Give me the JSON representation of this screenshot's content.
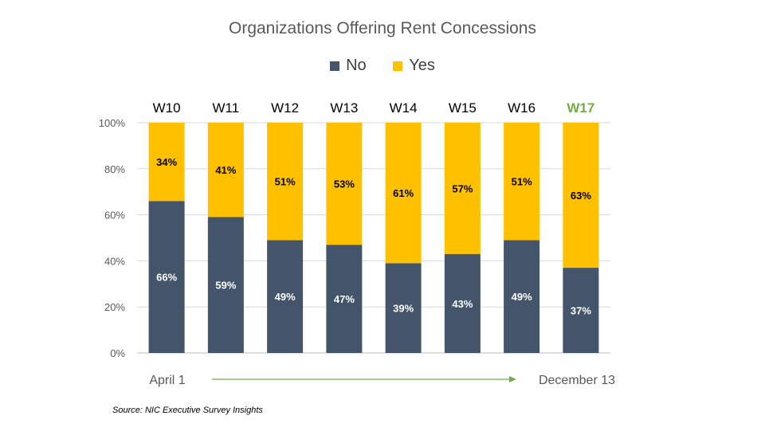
{
  "chart_data": {
    "type": "bar",
    "stacked": true,
    "title": "Organizations Offering Rent Concessions",
    "categories": [
      "W10",
      "W11",
      "W12",
      "W13",
      "W14",
      "W15",
      "W16",
      "W17"
    ],
    "highlight_category": "W17",
    "series": [
      {
        "name": "No",
        "values": [
          66,
          59,
          49,
          47,
          39,
          43,
          49,
          37
        ],
        "color": "#44546a"
      },
      {
        "name": "Yes",
        "values": [
          34,
          41,
          51,
          53,
          61,
          57,
          51,
          63
        ],
        "color": "#ffc000"
      }
    ],
    "data_labels": {
      "No": [
        "66%",
        "59%",
        "49%",
        "47%",
        "39%",
        "43%",
        "49%",
        "37%"
      ],
      "Yes": [
        "34%",
        "41%",
        "51%",
        "53%",
        "61%",
        "57%",
        "51%",
        "63%"
      ]
    },
    "y_ticks": [
      "0%",
      "20%",
      "40%",
      "60%",
      "80%",
      "100%"
    ],
    "ylim": [
      0,
      100
    ],
    "grid": true,
    "legend_position": "top",
    "timeline": {
      "start_label": "April 1",
      "end_label": "December 13",
      "arrow_color": "#70ad47"
    },
    "colors": {
      "highlight_text": "#70ad47",
      "category_text": "#000000",
      "axis_text": "#595959"
    }
  },
  "source_note": "Source: NIC Executive Survey Insights"
}
